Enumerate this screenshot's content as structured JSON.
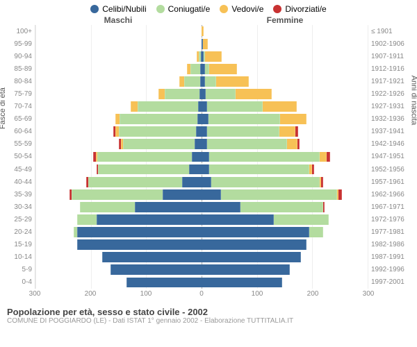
{
  "type": "population-pyramid",
  "legend": [
    {
      "label": "Celibi/Nubili",
      "color": "#38689c"
    },
    {
      "label": "Coniugati/e",
      "color": "#b3dc9f"
    },
    {
      "label": "Vedovi/e",
      "color": "#f7c156"
    },
    {
      "label": "Divorziati/e",
      "color": "#c83232"
    }
  ],
  "headers": {
    "male": "Maschi",
    "female": "Femmine"
  },
  "axis_left_label": "Fasce di età",
  "axis_right_label": "Anni di nascita",
  "title": "Popolazione per età, sesso e stato civile - 2002",
  "source": "COMUNE DI POGGIARDO (LE) - Dati ISTAT 1° gennaio 2002 - Elaborazione TUTTITALIA.IT",
  "x_axis": {
    "max": 300,
    "ticks_left": [
      300,
      200,
      100,
      0
    ],
    "ticks_right": [
      100,
      200,
      300
    ]
  },
  "colors": {
    "celibi": "#38689c",
    "coniugati": "#b3dc9f",
    "vedovi": "#f7c156",
    "divorziati": "#c83232",
    "grid": "#eeeeee",
    "center": "#aaaaaa",
    "text_axis": "#888888"
  },
  "age_labels": [
    "100+",
    "95-99",
    "90-94",
    "85-89",
    "80-84",
    "75-79",
    "70-74",
    "65-69",
    "60-64",
    "55-59",
    "50-54",
    "45-49",
    "40-44",
    "35-39",
    "30-34",
    "25-29",
    "20-24",
    "15-19",
    "10-14",
    "5-9",
    "0-4"
  ],
  "year_labels": [
    "≤ 1901",
    "1902-1906",
    "1907-1911",
    "1912-1916",
    "1917-1921",
    "1922-1926",
    "1927-1931",
    "1932-1936",
    "1937-1941",
    "1942-1946",
    "1947-1951",
    "1952-1956",
    "1957-1961",
    "1962-1966",
    "1967-1971",
    "1972-1976",
    "1977-1981",
    "1982-1986",
    "1987-1991",
    "1992-1996",
    "1997-2001"
  ],
  "rows": [
    {
      "m": {
        "c": 0,
        "co": 0,
        "v": 0,
        "d": 0
      },
      "f": {
        "c": 0,
        "co": 0,
        "v": 4,
        "d": 0
      }
    },
    {
      "m": {
        "c": 0,
        "co": 0,
        "v": 0,
        "d": 0
      },
      "f": {
        "c": 3,
        "co": 0,
        "v": 8,
        "d": 0
      }
    },
    {
      "m": {
        "c": 1,
        "co": 4,
        "v": 3,
        "d": 0
      },
      "f": {
        "c": 4,
        "co": 2,
        "v": 30,
        "d": 0
      }
    },
    {
      "m": {
        "c": 2,
        "co": 18,
        "v": 6,
        "d": 0
      },
      "f": {
        "c": 6,
        "co": 8,
        "v": 50,
        "d": 0
      }
    },
    {
      "m": {
        "c": 3,
        "co": 28,
        "v": 9,
        "d": 0
      },
      "f": {
        "c": 6,
        "co": 20,
        "v": 60,
        "d": 0
      }
    },
    {
      "m": {
        "c": 4,
        "co": 62,
        "v": 12,
        "d": 0
      },
      "f": {
        "c": 7,
        "co": 55,
        "v": 65,
        "d": 0
      }
    },
    {
      "m": {
        "c": 6,
        "co": 110,
        "v": 12,
        "d": 0
      },
      "f": {
        "c": 10,
        "co": 100,
        "v": 62,
        "d": 0
      }
    },
    {
      "m": {
        "c": 8,
        "co": 140,
        "v": 8,
        "d": 0
      },
      "f": {
        "c": 12,
        "co": 130,
        "v": 48,
        "d": 0
      }
    },
    {
      "m": {
        "c": 10,
        "co": 140,
        "v": 6,
        "d": 4
      },
      "f": {
        "c": 10,
        "co": 130,
        "v": 30,
        "d": 4
      }
    },
    {
      "m": {
        "c": 12,
        "co": 130,
        "v": 4,
        "d": 4
      },
      "f": {
        "c": 10,
        "co": 145,
        "v": 18,
        "d": 4
      }
    },
    {
      "m": {
        "c": 18,
        "co": 170,
        "v": 3,
        "d": 5
      },
      "f": {
        "c": 14,
        "co": 200,
        "v": 12,
        "d": 6
      }
    },
    {
      "m": {
        "c": 22,
        "co": 165,
        "v": 0,
        "d": 3
      },
      "f": {
        "c": 14,
        "co": 180,
        "v": 6,
        "d": 3
      }
    },
    {
      "m": {
        "c": 35,
        "co": 170,
        "v": 0,
        "d": 3
      },
      "f": {
        "c": 18,
        "co": 195,
        "v": 3,
        "d": 4
      }
    },
    {
      "m": {
        "c": 70,
        "co": 165,
        "v": 0,
        "d": 3
      },
      "f": {
        "c": 35,
        "co": 210,
        "v": 2,
        "d": 6
      }
    },
    {
      "m": {
        "c": 120,
        "co": 100,
        "v": 0,
        "d": 0
      },
      "f": {
        "c": 70,
        "co": 150,
        "v": 0,
        "d": 2
      }
    },
    {
      "m": {
        "c": 190,
        "co": 35,
        "v": 0,
        "d": 0
      },
      "f": {
        "c": 130,
        "co": 100,
        "v": 0,
        "d": 0
      }
    },
    {
      "m": {
        "c": 225,
        "co": 6,
        "v": 0,
        "d": 0
      },
      "f": {
        "c": 195,
        "co": 25,
        "v": 0,
        "d": 0
      }
    },
    {
      "m": {
        "c": 225,
        "co": 0,
        "v": 0,
        "d": 0
      },
      "f": {
        "c": 190,
        "co": 0,
        "v": 0,
        "d": 0
      }
    },
    {
      "m": {
        "c": 180,
        "co": 0,
        "v": 0,
        "d": 0
      },
      "f": {
        "c": 180,
        "co": 0,
        "v": 0,
        "d": 0
      }
    },
    {
      "m": {
        "c": 165,
        "co": 0,
        "v": 0,
        "d": 0
      },
      "f": {
        "c": 160,
        "co": 0,
        "v": 0,
        "d": 0
      }
    },
    {
      "m": {
        "c": 135,
        "co": 0,
        "v": 0,
        "d": 0
      },
      "f": {
        "c": 145,
        "co": 0,
        "v": 0,
        "d": 0
      }
    }
  ]
}
